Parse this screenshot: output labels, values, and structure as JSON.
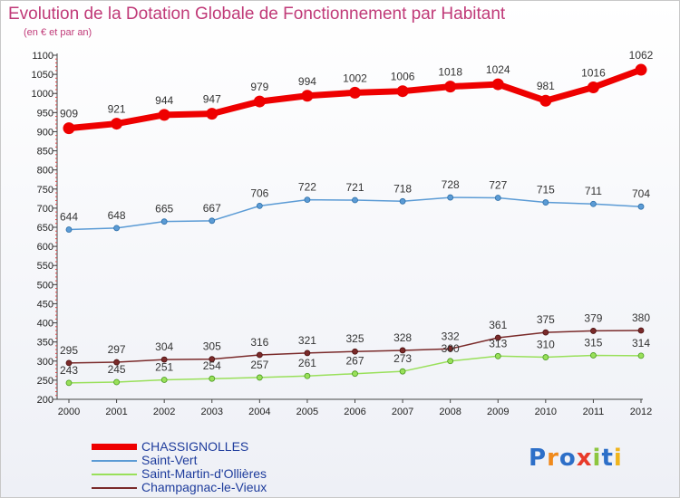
{
  "header": {
    "title": "Evolution de la Dotation Globale de Fonctionnement par Habitant",
    "subtitle": "(en € et par an)"
  },
  "logo": {
    "text": "Proxiti",
    "letters": [
      "P",
      "r",
      "o",
      "x",
      "i",
      "t",
      "i"
    ],
    "colors": [
      "#2d6fc8",
      "#f08a1c",
      "#2d6fc8",
      "#e83a2a",
      "#8dc63f",
      "#2d6fc8",
      "#f0b41c"
    ]
  },
  "chart_data": {
    "type": "line",
    "x": [
      "2000",
      "2001",
      "2002",
      "2003",
      "2004",
      "2005",
      "2006",
      "2007",
      "2008",
      "2009",
      "2010",
      "2011",
      "2012"
    ],
    "ylim": [
      200,
      1100
    ],
    "yticks": [
      200,
      250,
      300,
      350,
      400,
      450,
      500,
      550,
      600,
      650,
      700,
      750,
      800,
      850,
      900,
      950,
      1000,
      1050,
      1100
    ],
    "grid": false,
    "legend_position": "bottom-left",
    "series": [
      {
        "name": "CHASSIGNOLLES",
        "color": "#ee0000",
        "values": [
          909,
          921,
          944,
          947,
          979,
          994,
          1002,
          1006,
          1018,
          1024,
          981,
          1016,
          1062
        ]
      },
      {
        "name": "Saint-Vert",
        "color": "#5b9bd5",
        "values": [
          644,
          648,
          665,
          667,
          706,
          722,
          721,
          718,
          728,
          727,
          715,
          711,
          704
        ]
      },
      {
        "name": "Saint-Martin-d'Ollières",
        "color": "#99e05a",
        "values": [
          243,
          245,
          251,
          254,
          257,
          261,
          267,
          273,
          300,
          313,
          310,
          315,
          314
        ]
      },
      {
        "name": "Champagnac-le-Vieux",
        "color": "#7a2a2a",
        "values": [
          295,
          297,
          304,
          305,
          316,
          321,
          325,
          328,
          332,
          361,
          375,
          379,
          380
        ]
      }
    ]
  }
}
